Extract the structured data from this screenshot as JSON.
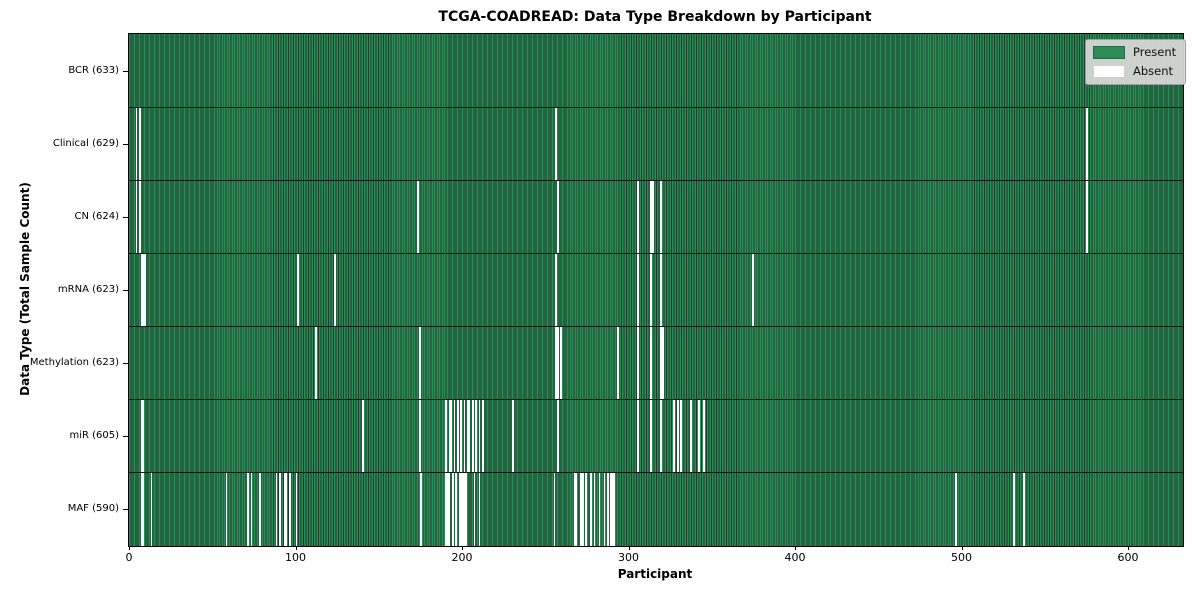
{
  "chart_data": {
    "type": "heatmap",
    "title": "TCGA-COADREAD: Data Type Breakdown by Participant",
    "xlabel": "Participant",
    "ylabel": "Data Type (Total Sample Count)",
    "n_participants": 633,
    "x_ticks": [
      0,
      100,
      200,
      300,
      400,
      500,
      600
    ],
    "xlim": [
      0,
      633
    ],
    "grid": false,
    "legend": {
      "position": "upper-right",
      "present_label": "Present",
      "absent_label": "Absent"
    },
    "colors": {
      "present": "#2E8B57",
      "absent": "#FFFFFF",
      "cell_edge": "#16402A",
      "row_separator": "#0B1D12",
      "legend_bg": "rgba(217,217,217,0.93)",
      "legend_border": "#9E9E9E"
    },
    "rows": [
      {
        "label": "BCR",
        "total": 633,
        "tick_display": "BCR (633)",
        "absent_participants": []
      },
      {
        "label": "Clinical",
        "total": 629,
        "tick_display": "Clinical (629)",
        "absent_participants": [
          4,
          6,
          256,
          575
        ]
      },
      {
        "label": "CN",
        "total": 624,
        "tick_display": "CN (624)",
        "absent_participants": [
          4,
          6,
          173,
          257,
          305,
          313,
          314,
          319,
          575
        ]
      },
      {
        "label": "mRNA",
        "total": 623,
        "tick_display": "mRNA (623)",
        "absent_participants": [
          7,
          8,
          9,
          101,
          123,
          256,
          305,
          313,
          319,
          374
        ]
      },
      {
        "label": "Methylation",
        "total": 623,
        "tick_display": "Methylation (623)",
        "absent_participants": [
          112,
          174,
          256,
          257,
          259,
          293,
          305,
          313,
          319,
          320
        ]
      },
      {
        "label": "miR",
        "total": 605,
        "tick_display": "miR (605)",
        "absent_participants": [
          7,
          8,
          140,
          174,
          190,
          192,
          193,
          195,
          197,
          199,
          201,
          203,
          204,
          206,
          208,
          210,
          212,
          230,
          257,
          305,
          313,
          319,
          327,
          329,
          331,
          337,
          342,
          345
        ]
      },
      {
        "label": "MAF",
        "total": 590,
        "tick_display": "MAF (590)",
        "absent_participants": [
          7,
          8,
          13,
          58,
          71,
          73,
          78,
          88,
          90,
          93,
          94,
          96,
          100,
          175,
          190,
          191,
          192,
          194,
          196,
          198,
          199,
          200,
          201,
          202,
          207,
          210,
          255,
          267,
          268,
          271,
          272,
          274,
          277,
          279,
          282,
          285,
          287,
          289,
          290,
          291,
          496,
          531,
          537
        ]
      }
    ]
  }
}
